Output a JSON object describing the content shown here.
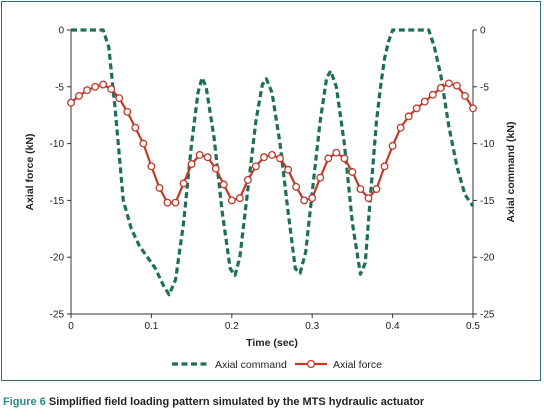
{
  "chart_data": {
    "type": "line",
    "xlabel": "Time (sec)",
    "ylabel_left": "Axial force (kN)",
    "ylabel_right": "Axial command (kN)",
    "xlim": [
      0,
      0.5
    ],
    "ylim_left": [
      -25,
      0
    ],
    "ylim_right": [
      -25,
      0
    ],
    "x_ticks": [
      "0",
      "0.1",
      "0.2",
      "0.3",
      "0.4",
      "0.5"
    ],
    "y_ticks_left": [
      "0",
      "-5",
      "-10",
      "-15",
      "-20",
      "-25"
    ],
    "y_ticks_right": [
      "0",
      "-5",
      "-10",
      "-15",
      "-20",
      "-25"
    ],
    "legend_position": "bottom",
    "series": [
      {
        "name": "Axial command",
        "axis": "right",
        "color": "#1f6e5a",
        "style": "dashed",
        "x": [
          0,
          0.02,
          0.04,
          0.047,
          0.055,
          0.065,
          0.075,
          0.085,
          0.095,
          0.105,
          0.115,
          0.122,
          0.13,
          0.14,
          0.15,
          0.158,
          0.163,
          0.168,
          0.178,
          0.188,
          0.198,
          0.204,
          0.21,
          0.22,
          0.23,
          0.238,
          0.243,
          0.25,
          0.26,
          0.27,
          0.279,
          0.285,
          0.292,
          0.302,
          0.31,
          0.318,
          0.323,
          0.33,
          0.34,
          0.35,
          0.36,
          0.366,
          0.372,
          0.38,
          0.385,
          0.39,
          0.395,
          0.4,
          0.42,
          0.445,
          0.452,
          0.46,
          0.47,
          0.48,
          0.49,
          0.5
        ],
        "y": [
          0,
          0,
          0,
          -1.5,
          -7,
          -15,
          -17.5,
          -19,
          -20,
          -21,
          -22.5,
          -23.3,
          -22,
          -17,
          -10,
          -5.5,
          -4.2,
          -5,
          -9.5,
          -16,
          -21,
          -21.6,
          -20,
          -14,
          -8,
          -4.8,
          -4.3,
          -5.5,
          -10,
          -16,
          -21,
          -21.4,
          -19.5,
          -13,
          -8,
          -4.2,
          -3.6,
          -5,
          -10,
          -17,
          -21.5,
          -20.5,
          -15,
          -8,
          -5,
          -2.5,
          -1,
          0,
          0,
          0,
          -1.5,
          -4,
          -8.5,
          -12,
          -14.5,
          -15.5
        ]
      },
      {
        "name": "Axial force",
        "axis": "left",
        "color": "#c0392b",
        "style": "solid-markers",
        "x": [
          0,
          0.01,
          0.02,
          0.03,
          0.04,
          0.05,
          0.06,
          0.07,
          0.08,
          0.09,
          0.1,
          0.11,
          0.12,
          0.13,
          0.14,
          0.15,
          0.16,
          0.17,
          0.18,
          0.19,
          0.2,
          0.21,
          0.22,
          0.23,
          0.24,
          0.25,
          0.26,
          0.27,
          0.28,
          0.29,
          0.3,
          0.31,
          0.32,
          0.33,
          0.34,
          0.35,
          0.36,
          0.37,
          0.38,
          0.39,
          0.4,
          0.41,
          0.42,
          0.43,
          0.44,
          0.45,
          0.46,
          0.47,
          0.48,
          0.49,
          0.5
        ],
        "y": [
          -6.4,
          -5.8,
          -5.3,
          -5.0,
          -4.8,
          -5.2,
          -6.0,
          -7.2,
          -8.6,
          -10.0,
          -12.0,
          -13.9,
          -15.2,
          -15.2,
          -13.5,
          -11.8,
          -11.0,
          -11.2,
          -12.2,
          -13.6,
          -15.0,
          -14.8,
          -13.2,
          -12.0,
          -11.2,
          -11.0,
          -11.3,
          -12.3,
          -13.8,
          -15.0,
          -14.8,
          -13.0,
          -11.3,
          -10.8,
          -11.3,
          -12.5,
          -14.0,
          -14.8,
          -14.0,
          -12.0,
          -10.2,
          -8.6,
          -7.6,
          -6.9,
          -6.3,
          -5.7,
          -5.1,
          -4.7,
          -4.9,
          -5.8,
          -6.9
        ]
      }
    ]
  },
  "caption": {
    "label": "Figure 6",
    "text": " Simplified field loading pattern simulated by the MTS hydraulic actuator"
  }
}
